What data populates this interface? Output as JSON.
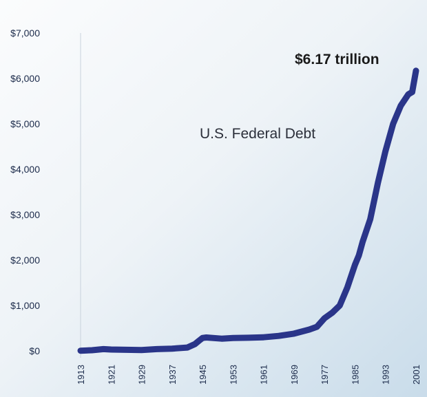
{
  "chart_data": {
    "type": "line",
    "series_label": "U.S. Federal Debt",
    "annotation": "$6.17 trillion",
    "x_tick_labels": [
      "1913",
      "1921",
      "1929",
      "1937",
      "1945",
      "1953",
      "1961",
      "1969",
      "1977",
      "1985",
      "1993",
      "2001"
    ],
    "y_tick_labels": [
      "$0",
      "$1,000",
      "$2,000",
      "$3,000",
      "$4,000",
      "$5,000",
      "$6,000",
      "$7,000"
    ],
    "xlim": [
      1913,
      2001
    ],
    "ylim": [
      0,
      7000
    ],
    "grid": false,
    "line_color": "#2a3589",
    "series": [
      {
        "x": [
          1913,
          1916,
          1919,
          1921,
          1925,
          1929,
          1933,
          1937,
          1941,
          1943,
          1944,
          1945,
          1946,
          1950,
          1953,
          1957,
          1961,
          1965,
          1969,
          1973,
          1975,
          1977,
          1979,
          1981,
          1983,
          1985,
          1986,
          1987,
          1989,
          1991,
          1993,
          1995,
          1997,
          1999,
          2000,
          2001
        ],
        "values": [
          5,
          15,
          40,
          30,
          25,
          20,
          40,
          50,
          75,
          150,
          220,
          285,
          295,
          270,
          285,
          290,
          300,
          330,
          380,
          470,
          530,
          720,
          840,
          1000,
          1400,
          1900,
          2100,
          2400,
          2900,
          3700,
          4400,
          5000,
          5400,
          5650,
          5700,
          6170
        ]
      }
    ]
  }
}
